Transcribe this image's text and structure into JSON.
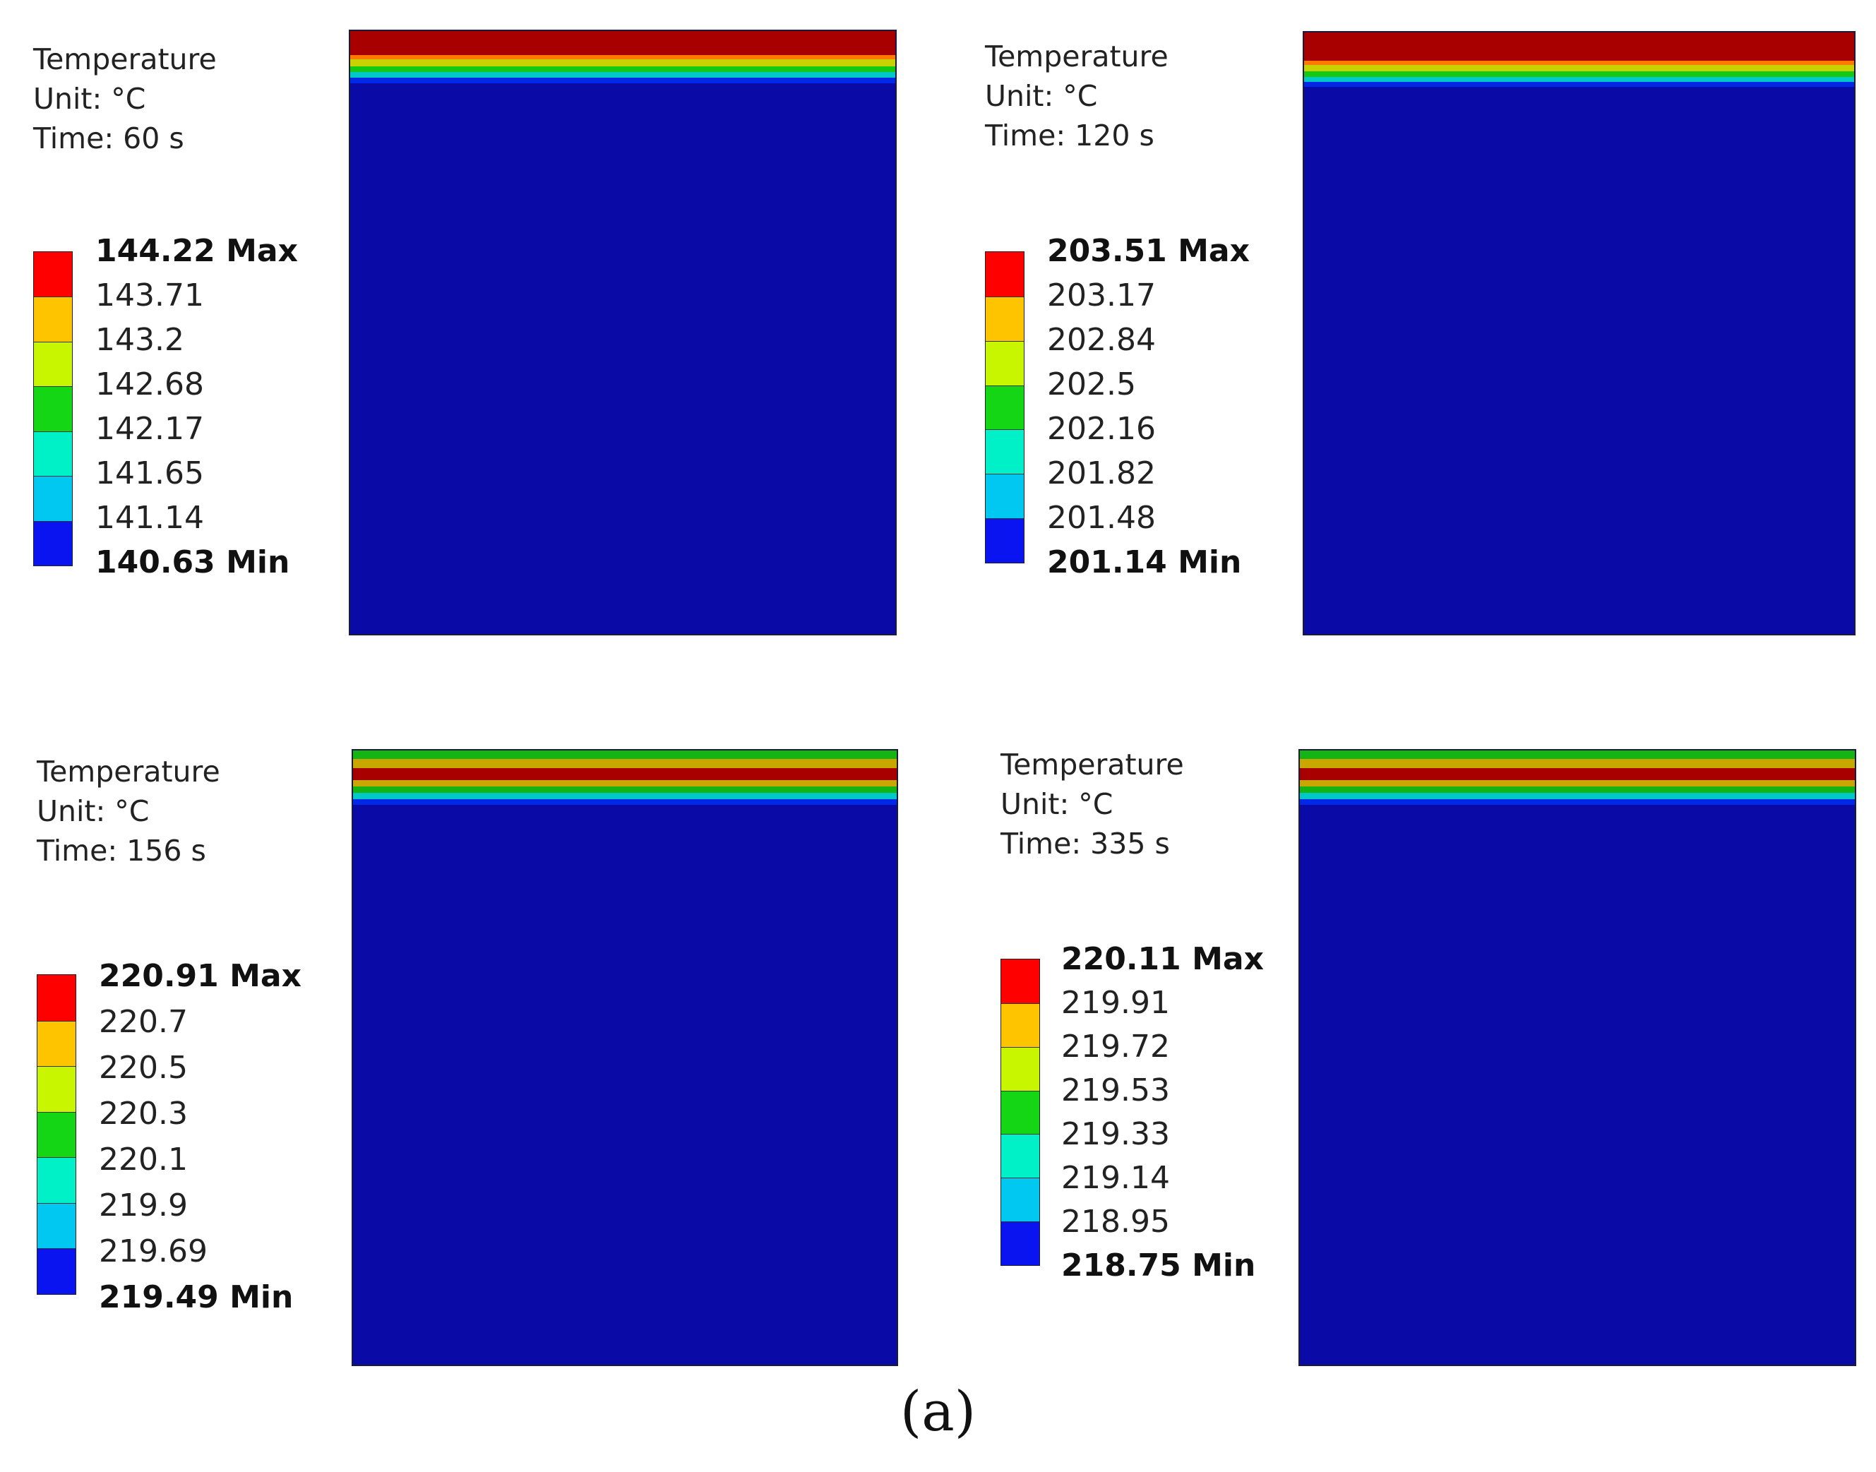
{
  "figure": {
    "caption": "(a)"
  },
  "colors": {
    "domain_blue": "#0a0aa6",
    "legend": [
      "#ff0000",
      "#ffc400",
      "#c8f500",
      "#14d614",
      "#00f0c8",
      "#00c8f0",
      "#0a14f0"
    ]
  },
  "panels": [
    {
      "title": "Temperature",
      "unit": "Unit: °C",
      "time": "Time: 60 s",
      "max_label": "144.22 Max",
      "levels": [
        "143.71",
        "143.2",
        "142.68",
        "142.17",
        "141.65",
        "141.14"
      ],
      "min_label": "140.63 Min",
      "top_bands": [
        {
          "color": "#a80000",
          "share": 0.46
        },
        {
          "color": "#ff7a00",
          "share": 0.08
        },
        {
          "color": "#c8d200",
          "share": 0.13
        },
        {
          "color": "#14c814",
          "share": 0.11
        },
        {
          "color": "#00c8c8",
          "share": 0.11
        },
        {
          "color": "#0028e6",
          "share": 0.11
        }
      ]
    },
    {
      "title": "Temperature",
      "unit": "Unit: °C",
      "time": "Time: 120 s",
      "max_label": "203.51 Max",
      "levels": [
        "203.17",
        "202.84",
        "202.5",
        "202.16",
        "201.82",
        "201.48"
      ],
      "min_label": "201.14 Min",
      "top_bands": [
        {
          "color": "#a80000",
          "share": 0.52
        },
        {
          "color": "#ff7a00",
          "share": 0.08
        },
        {
          "color": "#c8d200",
          "share": 0.12
        },
        {
          "color": "#14c814",
          "share": 0.1
        },
        {
          "color": "#00c8c8",
          "share": 0.09
        },
        {
          "color": "#0028e6",
          "share": 0.09
        }
      ]
    },
    {
      "title": "Temperature",
      "unit": "Unit: °C",
      "time": "Time: 156 s",
      "max_label": "220.91 Max",
      "levels": [
        "220.7",
        "220.5",
        "220.3",
        "220.1",
        "219.9",
        "219.69"
      ],
      "min_label": "219.49 Min",
      "top_bands": [
        {
          "color": "#14b414",
          "share": 0.16
        },
        {
          "color": "#c8a800",
          "share": 0.16
        },
        {
          "color": "#a80000",
          "share": 0.22
        },
        {
          "color": "#c8a800",
          "share": 0.12
        },
        {
          "color": "#14b414",
          "share": 0.12
        },
        {
          "color": "#00c8c8",
          "share": 0.11
        },
        {
          "color": "#0028e6",
          "share": 0.11
        }
      ]
    },
    {
      "title": "Temperature",
      "unit": "Unit: °C",
      "time": "Time: 335 s",
      "max_label": "220.11 Max",
      "levels": [
        "219.91",
        "219.72",
        "219.53",
        "219.33",
        "219.14",
        "218.95"
      ],
      "min_label": "218.75 Min",
      "top_bands": [
        {
          "color": "#14b414",
          "share": 0.16
        },
        {
          "color": "#c8a800",
          "share": 0.16
        },
        {
          "color": "#a80000",
          "share": 0.22
        },
        {
          "color": "#c8a800",
          "share": 0.12
        },
        {
          "color": "#14b414",
          "share": 0.12
        },
        {
          "color": "#00c8c8",
          "share": 0.11
        },
        {
          "color": "#0028e6",
          "share": 0.11
        }
      ]
    }
  ]
}
